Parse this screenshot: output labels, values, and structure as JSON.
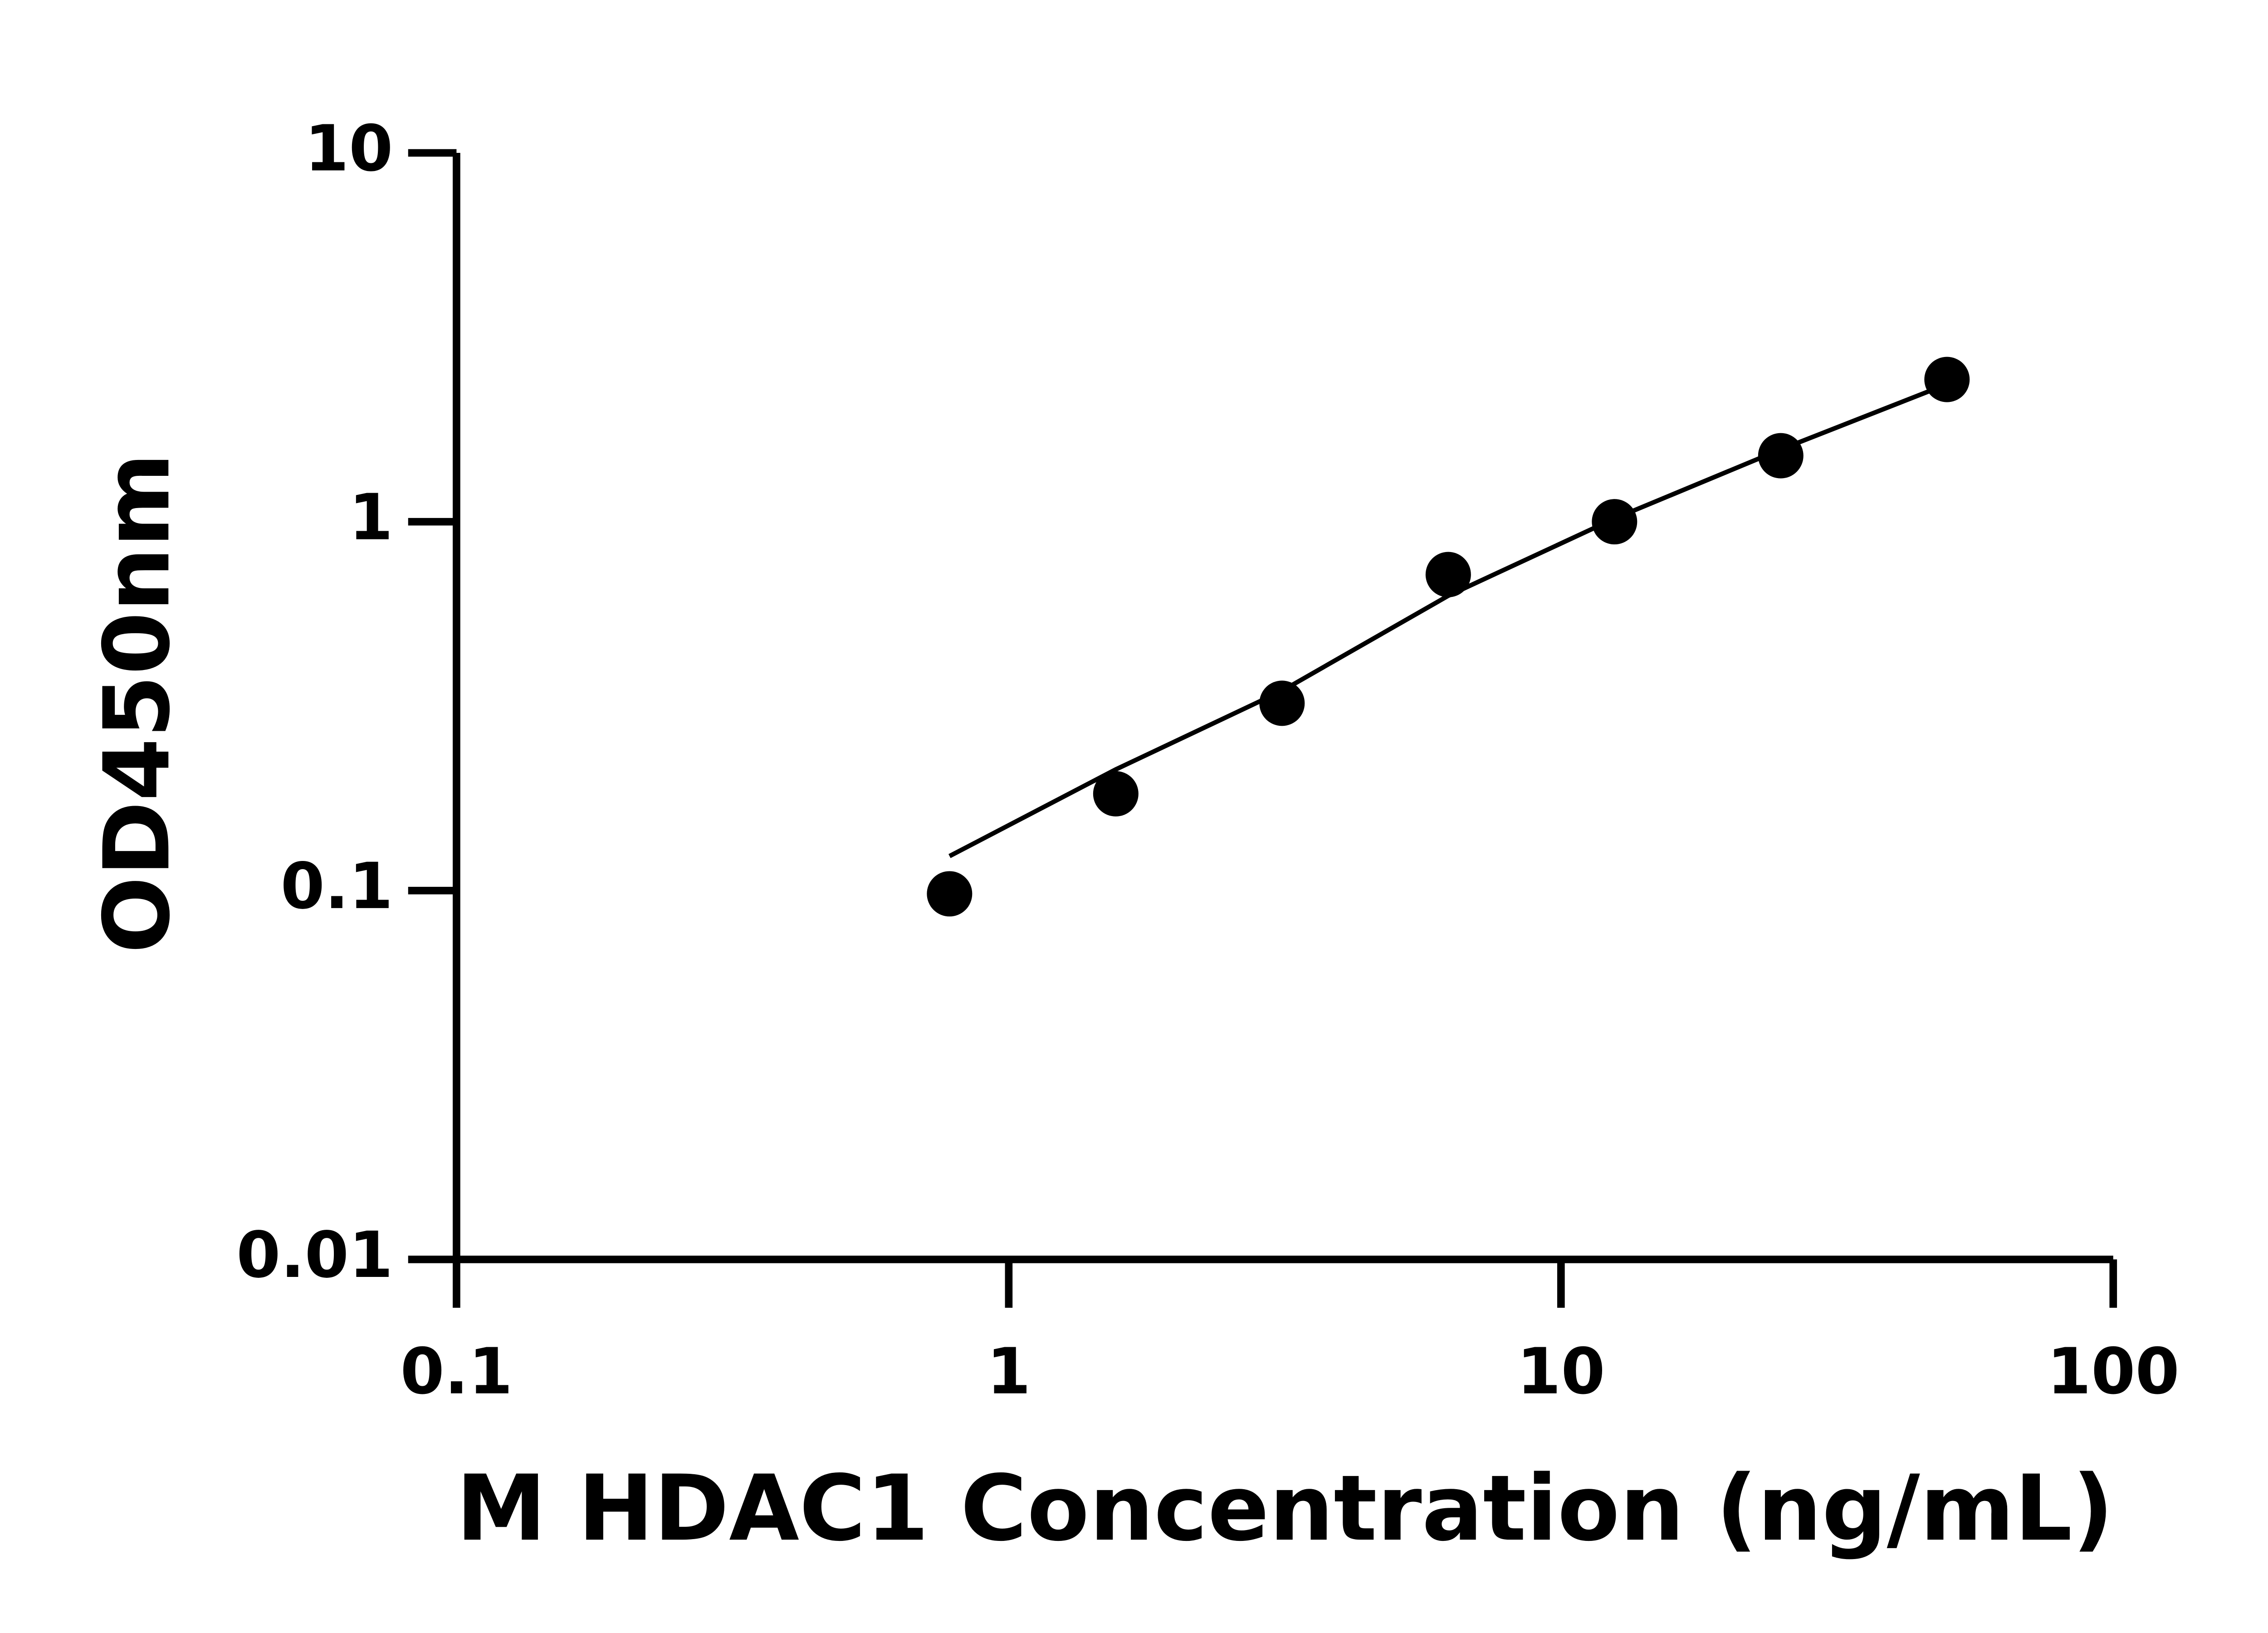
{
  "chart_data": {
    "type": "scatter",
    "x_label": "M HDAC1 Concentration (ng/mL)",
    "y_label": "OD450nm",
    "xlog": true,
    "ylog": true,
    "xlim": [
      0.1,
      100
    ],
    "xticks": [
      0.1,
      1,
      10,
      100
    ],
    "ylim": [
      0.01,
      10
    ],
    "yticks": [
      0.01,
      0.1,
      1,
      10
    ],
    "series": [
      {
        "type": "scatter",
        "color": "#000000",
        "x": [
          0.78125,
          1.5625,
          3.125,
          6.25,
          12.5,
          25,
          50
        ],
        "values": [
          0.098,
          0.183,
          0.322,
          0.719,
          1.0,
          1.51,
          2.43
        ]
      },
      {
        "type": "line",
        "color": "#000000",
        "x": [
          0.78125,
          1.5625,
          3.125,
          6.25,
          12.5,
          25,
          50
        ],
        "values": [
          0.124,
          0.213,
          0.348,
          0.63,
          1.02,
          1.57,
          2.36
        ]
      }
    ]
  }
}
